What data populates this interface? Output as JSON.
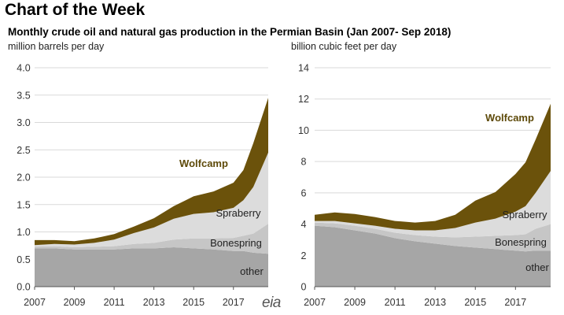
{
  "header": {
    "heading": "Chart of the Week",
    "subtitle": "Monthly crude oil and natural gas production in the Permian Basin (Jan 2007- Sep 2018)"
  },
  "logo_text": "eia",
  "colors": {
    "other": "#a6a6a6",
    "bonespring": "#c6c6c6",
    "spraberry": "#dcdcdc",
    "wolfcamp": "#6b520b",
    "wolfcamp_label": "#5e4a0a"
  },
  "chart_data": [
    {
      "type": "area",
      "stacked": true,
      "ylabel": "million barrels per day",
      "ylim": [
        0,
        4.0
      ],
      "yticks": [
        "0.0",
        "0.5",
        "1.0",
        "1.5",
        "2.0",
        "2.5",
        "3.0",
        "3.5",
        "4.0"
      ],
      "xlim": [
        2007,
        2018.75
      ],
      "xticks": [
        "2007",
        "2009",
        "2011",
        "2013",
        "2015",
        "2017"
      ],
      "grid": true,
      "x": [
        2007.0,
        2008.0,
        2009.0,
        2010.0,
        2011.0,
        2012.0,
        2013.0,
        2014.0,
        2015.0,
        2016.0,
        2017.0,
        2017.5,
        2018.0,
        2018.75
      ],
      "series": [
        {
          "name": "other",
          "values": [
            0.7,
            0.7,
            0.68,
            0.68,
            0.68,
            0.7,
            0.7,
            0.72,
            0.7,
            0.68,
            0.65,
            0.65,
            0.62,
            0.6
          ]
        },
        {
          "name": "Bonespring",
          "values": [
            0.03,
            0.04,
            0.04,
            0.05,
            0.06,
            0.08,
            0.1,
            0.14,
            0.18,
            0.2,
            0.24,
            0.28,
            0.35,
            0.55
          ]
        },
        {
          "name": "Spraberry",
          "values": [
            0.03,
            0.04,
            0.05,
            0.07,
            0.12,
            0.2,
            0.28,
            0.38,
            0.45,
            0.48,
            0.55,
            0.65,
            0.85,
            1.3
          ]
        },
        {
          "name": "Wolfcamp",
          "values": [
            0.09,
            0.07,
            0.06,
            0.08,
            0.1,
            0.12,
            0.17,
            0.23,
            0.32,
            0.38,
            0.46,
            0.55,
            0.8,
            1.0
          ]
        }
      ],
      "labels": {
        "wolfcamp": "Wolfcamp",
        "spraberry": "Spraberry",
        "bonespring": "Bonespring",
        "other": "other"
      }
    },
    {
      "type": "area",
      "stacked": true,
      "ylabel": "billion cubic feet per day",
      "ylim": [
        0,
        14
      ],
      "yticks": [
        "0",
        "2",
        "4",
        "6",
        "8",
        "10",
        "12",
        "14"
      ],
      "xlim": [
        2007,
        2018.75
      ],
      "xticks": [
        "2007",
        "2009",
        "2011",
        "2013",
        "2015",
        "2017"
      ],
      "grid": true,
      "x": [
        2007.0,
        2008.0,
        2009.0,
        2010.0,
        2011.0,
        2012.0,
        2013.0,
        2014.0,
        2015.0,
        2016.0,
        2017.0,
        2017.5,
        2018.0,
        2018.75
      ],
      "series": [
        {
          "name": "other",
          "values": [
            3.9,
            3.8,
            3.6,
            3.4,
            3.1,
            2.9,
            2.75,
            2.6,
            2.5,
            2.4,
            2.3,
            2.25,
            2.3,
            2.3
          ]
        },
        {
          "name": "Bonespring",
          "values": [
            0.2,
            0.25,
            0.3,
            0.3,
            0.35,
            0.4,
            0.45,
            0.55,
            0.7,
            0.85,
            1.0,
            1.1,
            1.4,
            1.7
          ]
        },
        {
          "name": "Spraberry",
          "values": [
            0.1,
            0.15,
            0.15,
            0.2,
            0.25,
            0.3,
            0.4,
            0.6,
            0.9,
            1.1,
            1.5,
            1.8,
            2.3,
            3.4
          ]
        },
        {
          "name": "Wolfcamp",
          "values": [
            0.4,
            0.55,
            0.6,
            0.55,
            0.5,
            0.5,
            0.6,
            0.85,
            1.4,
            1.7,
            2.4,
            2.8,
            3.4,
            4.3
          ]
        }
      ],
      "labels": {
        "wolfcamp": "Wolfcamp",
        "spraberry": "Spraberry",
        "bonespring": "Bonespring",
        "other": "other"
      }
    }
  ]
}
